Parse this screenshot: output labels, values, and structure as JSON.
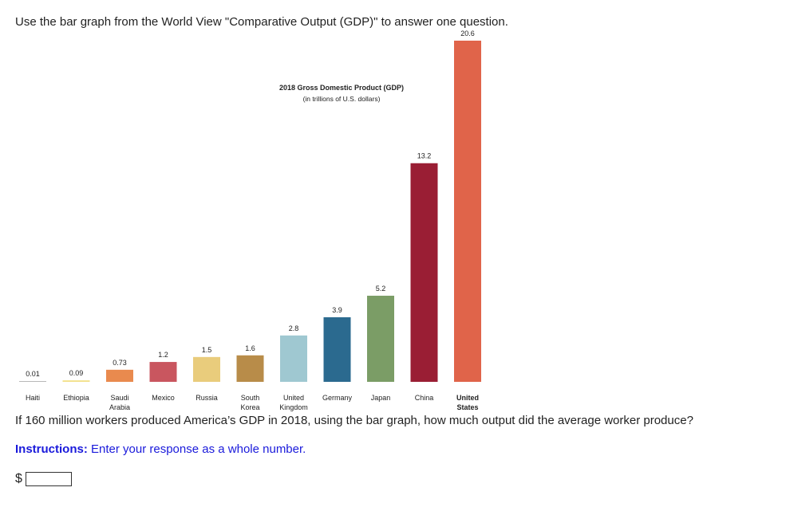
{
  "prompt": {
    "intro": "Use the bar graph from the World View \"Comparative Output (GDP)\" to answer one question.",
    "question": "If 160 million workers produced America’s GDP in 2018, using the bar graph, how much output did the average worker produce?",
    "instructions_label": "Instructions:",
    "instructions_text": " Enter your response as a whole number.",
    "currency_symbol": "$",
    "answer_value": ""
  },
  "chart_data": {
    "type": "bar",
    "title": "2018 Gross Domestic Product (GDP)",
    "subtitle": "(in trillions of U.S. dollars)",
    "categories": [
      [
        "Haiti"
      ],
      [
        "Ethiopia"
      ],
      [
        "Saudi",
        "Arabia"
      ],
      [
        "Mexico"
      ],
      [
        "Russia"
      ],
      [
        "South",
        "Korea"
      ],
      [
        "United",
        "Kingdom"
      ],
      [
        "Germany"
      ],
      [
        "Japan"
      ],
      [
        "China"
      ],
      [
        "United",
        "States"
      ]
    ],
    "values": [
      0.01,
      0.09,
      0.73,
      1.2,
      1.5,
      1.6,
      2.8,
      3.9,
      5.2,
      13.2,
      20.6
    ],
    "value_labels": [
      "0.01",
      "0.09",
      "0.73",
      "1.2",
      "1.5",
      "1.6",
      "2.8",
      "3.9",
      "5.2",
      "13.2",
      "20.6"
    ],
    "colors": [
      "#b8b8b8",
      "#f2e08a",
      "#e98a4e",
      "#c9565f",
      "#e9cc7c",
      "#b88c49",
      "#9fc8d1",
      "#2b6a8f",
      "#7b9d66",
      "#9a1e34",
      "#e0644a"
    ],
    "bold_category_index": 10,
    "ylim": [
      0,
      20.6
    ],
    "grid": false,
    "legend": "none"
  }
}
